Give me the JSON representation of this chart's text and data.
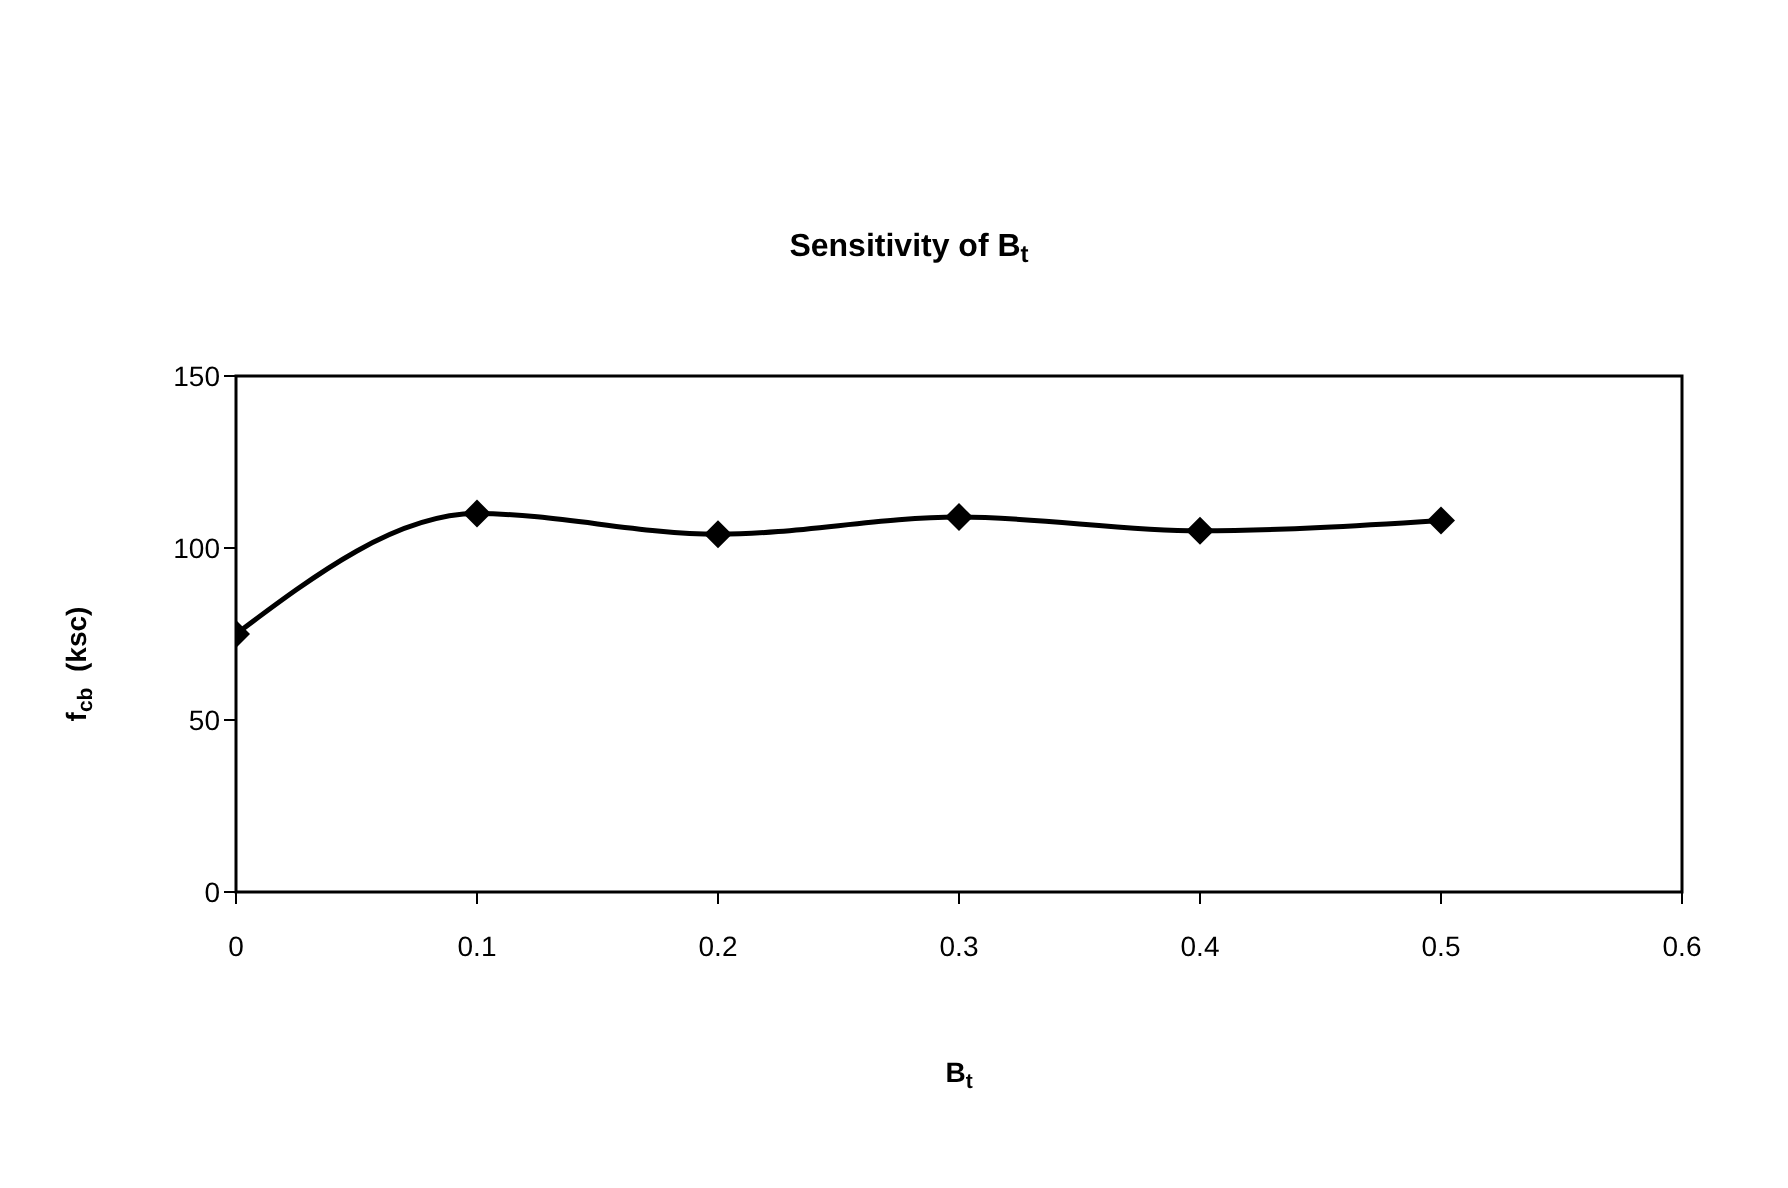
{
  "chart_data": {
    "type": "line",
    "title": "Sensitivity of B$_{t}$",
    "xlabel": "B$_{t}$",
    "ylabel": "f$_{cb}$  (ksc)",
    "x": [
      0,
      0.1,
      0.2,
      0.3,
      0.4,
      0.5
    ],
    "series": [
      {
        "color": "#000000",
        "values": [
          75,
          110,
          104,
          109,
          105,
          108
        ]
      }
    ],
    "xlim": [
      0,
      0.6
    ],
    "xticks": [
      0,
      0.1,
      0.2,
      0.3,
      0.4,
      0.5,
      0.6
    ],
    "ylim": [
      0,
      150
    ],
    "yticks": [
      0,
      50,
      100,
      150
    ],
    "grid": false,
    "legend": false,
    "marker": "diamond",
    "line_style": "solid"
  }
}
